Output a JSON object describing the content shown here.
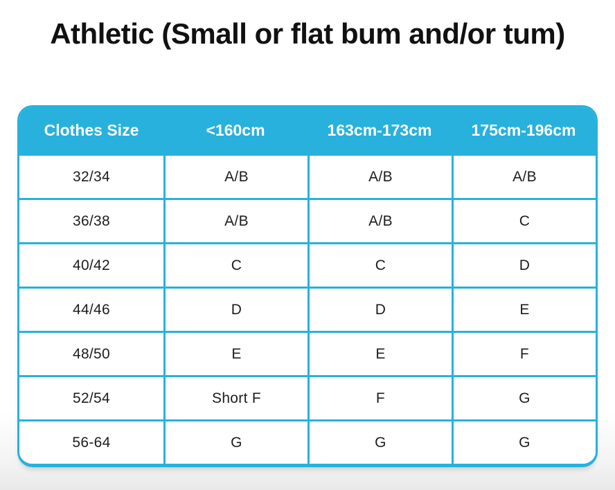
{
  "title": "Athletic (Small or flat bum and/or tum)",
  "colors": {
    "accent": "#27b1dc",
    "header_text": "#ffffff",
    "body_text": "#1d1d1b",
    "title_text": "#111111"
  },
  "chart_data": {
    "type": "table",
    "title": "Athletic (Small or flat bum and/or tum)",
    "columns": [
      "Clothes Size",
      "<160cm",
      "163cm-173cm",
      "175cm-196cm"
    ],
    "rows": [
      [
        "32/34",
        "A/B",
        "A/B",
        "A/B"
      ],
      [
        "36/38",
        "A/B",
        "A/B",
        "C"
      ],
      [
        "40/42",
        "C",
        "C",
        "D"
      ],
      [
        "44/46",
        "D",
        "D",
        "E"
      ],
      [
        "48/50",
        "E",
        "E",
        "F"
      ],
      [
        "52/54",
        "Short F",
        "F",
        "G"
      ],
      [
        "56-64",
        "G",
        "G",
        "G"
      ]
    ]
  }
}
